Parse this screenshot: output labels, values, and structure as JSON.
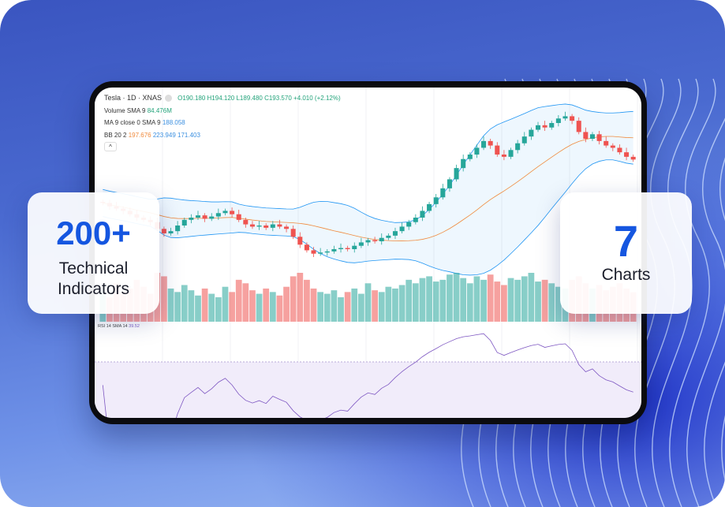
{
  "header": {
    "symbol": "Tesla · 1D · XNAS",
    "open": "O190.180",
    "high": "H194.120",
    "low": "L189.480",
    "close": "C193.570",
    "change": "+4.010 (+2.12%)"
  },
  "indicators": {
    "volume": {
      "label": "Volume SMA 9",
      "value": "84.476M"
    },
    "ma": {
      "label": "MA 9 close 0 SMA 9",
      "value": "188.058"
    },
    "bb": {
      "label": "BB 20 2",
      "basis": "197.676",
      "upper": "223.949",
      "lower": "171.403"
    },
    "rsi": {
      "label": "RSI 14 SMA 14",
      "value": "39.52"
    }
  },
  "cards": {
    "left": {
      "number": "200+",
      "text1": "Technical",
      "text2": "Indicators"
    },
    "right": {
      "number": "7",
      "text": "Charts"
    }
  },
  "colors": {
    "up": "#26a69a",
    "down": "#ef5350",
    "accent": "#1556e0",
    "bb_band": "#2196f3",
    "basis": "#f08a3c",
    "rsi": "#7e57c2"
  },
  "chart_data": {
    "type": "candlestick",
    "closes": [
      155,
      152,
      150,
      148,
      145,
      142,
      140,
      138,
      132,
      128,
      130,
      135,
      140,
      142,
      144,
      141,
      143,
      146,
      148,
      145,
      140,
      136,
      134,
      135,
      133,
      136,
      134,
      132,
      125,
      118,
      113,
      110,
      111,
      112,
      114,
      115,
      114,
      117,
      120,
      122,
      121,
      124,
      126,
      130,
      134,
      138,
      142,
      148,
      154,
      160,
      168,
      176,
      186,
      194,
      198,
      204,
      210,
      206,
      198,
      196,
      202,
      208,
      214,
      220,
      224,
      222,
      226,
      230,
      232,
      228,
      218,
      212,
      216,
      210,
      206,
      204,
      200,
      196,
      193.57
    ],
    "volumes_m": [
      90,
      70,
      110,
      85,
      95,
      120,
      100,
      80,
      140,
      130,
      95,
      85,
      105,
      90,
      75,
      95,
      80,
      70,
      100,
      85,
      120,
      110,
      90,
      80,
      95,
      85,
      75,
      100,
      130,
      140,
      120,
      95,
      85,
      80,
      90,
      70,
      85,
      95,
      80,
      110,
      90,
      85,
      100,
      95,
      105,
      120,
      110,
      125,
      130,
      115,
      120,
      135,
      140,
      125,
      110,
      130,
      120,
      135,
      115,
      105,
      125,
      120,
      130,
      140,
      115,
      120,
      110,
      100,
      95,
      120,
      130,
      110,
      95,
      105,
      90,
      100,
      110,
      95,
      84.5
    ],
    "rsi_reference_lines": [
      70,
      30
    ]
  }
}
